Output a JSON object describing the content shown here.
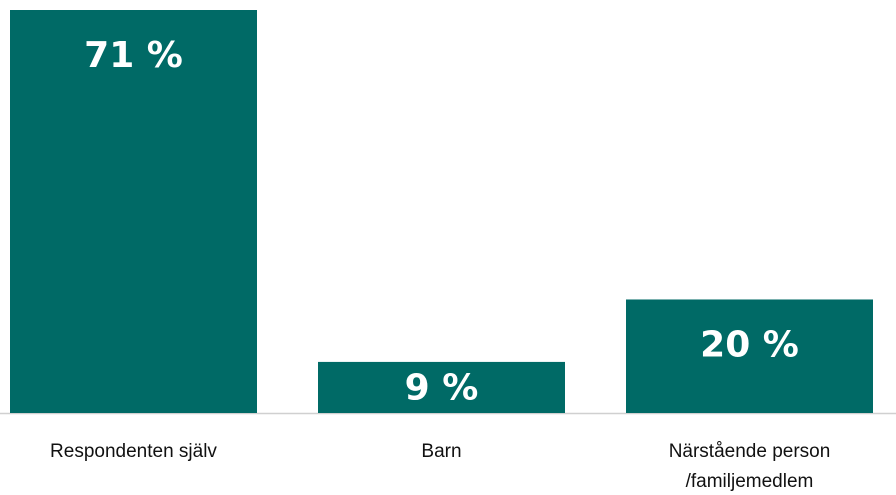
{
  "chart_data": {
    "type": "bar",
    "categories": [
      "Respondenten själv",
      "Barn",
      "Närstående person /familjemedlem"
    ],
    "values": [
      71,
      9,
      20
    ],
    "value_labels": [
      "71 %",
      "9 %",
      "20 %"
    ],
    "color": "#006a66"
  }
}
